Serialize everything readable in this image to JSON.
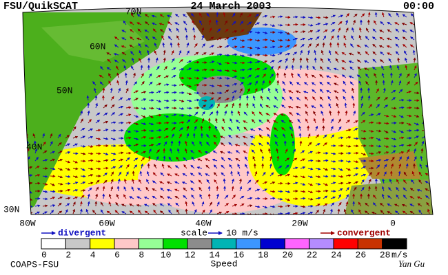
{
  "header": {
    "source": "FSU/QuikSCAT",
    "date": "24 March 2003",
    "time": "00:00"
  },
  "map": {
    "lat_labels": [
      "70N",
      "60N",
      "50N",
      "40N",
      "30N"
    ],
    "lon_labels": [
      "80W",
      "60W",
      "40W",
      "20W",
      "0"
    ]
  },
  "legend": {
    "divergent": "divergent",
    "scale": "scale",
    "scale_value": "10 m/s",
    "convergent": "convergent"
  },
  "colorbar": {
    "ticks": [
      0,
      2,
      4,
      6,
      8,
      10,
      12,
      14,
      16,
      18,
      20,
      22,
      24,
      26,
      28
    ],
    "colors": [
      "#ffffff",
      "#c8c8c8",
      "#ffff00",
      "#ffc8c8",
      "#96ff96",
      "#00e000",
      "#8c8c8c",
      "#00b4b4",
      "#3c96ff",
      "#0000d0",
      "#ff64ff",
      "#b48cff",
      "#ff0000",
      "#c83200",
      "#000000"
    ],
    "unit": "m/s",
    "label": "Speed"
  },
  "footer": {
    "institution": "COAPS-FSU",
    "author": "Yan Gu"
  }
}
